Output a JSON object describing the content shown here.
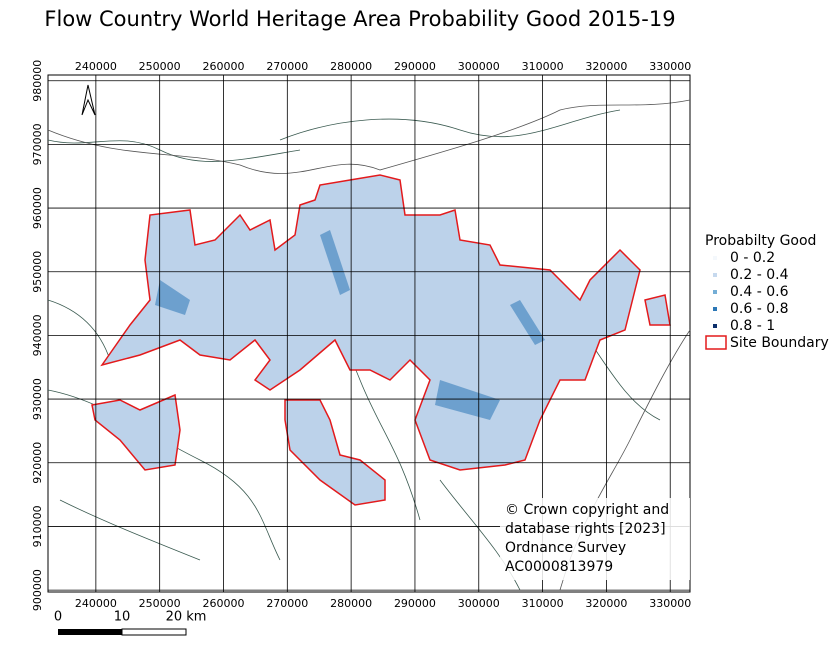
{
  "title": "Flow Country World Heritage Area Probability Good 2015-19",
  "map": {
    "xlim": [
      232500,
      333100
    ],
    "ylim": [
      899700,
      980900
    ],
    "xticks": [
      240000,
      250000,
      260000,
      270000,
      280000,
      290000,
      300000,
      310000,
      320000,
      330000
    ],
    "yticks": [
      900000,
      910000,
      920000,
      930000,
      940000,
      950000,
      960000,
      970000,
      980000
    ],
    "grid": true
  },
  "legend": {
    "title": "Probabilty Good",
    "items": [
      {
        "label": "0 - 0.2",
        "color": "#f4f8fc"
      },
      {
        "label": "0.2 - 0.4",
        "color": "#c6d9ee"
      },
      {
        "label": "0.4 - 0.6",
        "color": "#74aed6"
      },
      {
        "label": "0.6 - 0.8",
        "color": "#2b77b6"
      },
      {
        "label": "0.8 - 1",
        "color": "#0b2f6b"
      }
    ],
    "boundary": {
      "label": "Site Boundary",
      "color": "#e31a1c"
    }
  },
  "copyright": [
    "© Crown copyright and",
    "database rights [2023]",
    "Ordnance Survey",
    "AC0000813979"
  ],
  "scale_bar": {
    "labels": [
      "0",
      "10",
      "20 km"
    ]
  }
}
